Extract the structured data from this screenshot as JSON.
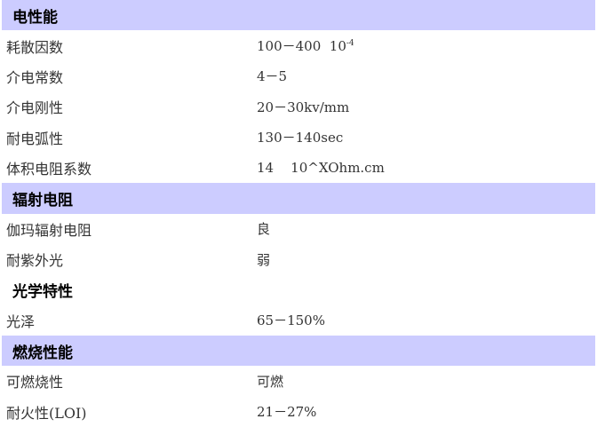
{
  "accent_color": "#ccccff",
  "rows": [
    {
      "type": "section",
      "label": "电性能",
      "shaded": true
    },
    {
      "type": "item",
      "label": "耗散因数",
      "value": "100－400  10",
      "sup": "-4"
    },
    {
      "type": "item",
      "label": "介电常数",
      "value": "4－5"
    },
    {
      "type": "item",
      "label": "介电刚性",
      "value": "20－30kv/mm"
    },
    {
      "type": "item",
      "label": "耐电弧性",
      "value": "130－140sec"
    },
    {
      "type": "item",
      "label": "体积电阻系数",
      "value": "14    10^XOhm.cm"
    },
    {
      "type": "section",
      "label": "辐射电阻",
      "shaded": true
    },
    {
      "type": "item",
      "label": "伽玛辐射电阻",
      "value": "良"
    },
    {
      "type": "item",
      "label": "耐紫外光",
      "value": "弱"
    },
    {
      "type": "section",
      "label": "光学特性",
      "shaded": false
    },
    {
      "type": "item",
      "label": "光泽",
      "value": "65－150%"
    },
    {
      "type": "section",
      "label": "燃烧性能",
      "shaded": true
    },
    {
      "type": "item",
      "label": "可燃烧性",
      "value": "可燃"
    },
    {
      "type": "item",
      "label": "耐火性(LOI)",
      "value": "21－27%"
    }
  ]
}
